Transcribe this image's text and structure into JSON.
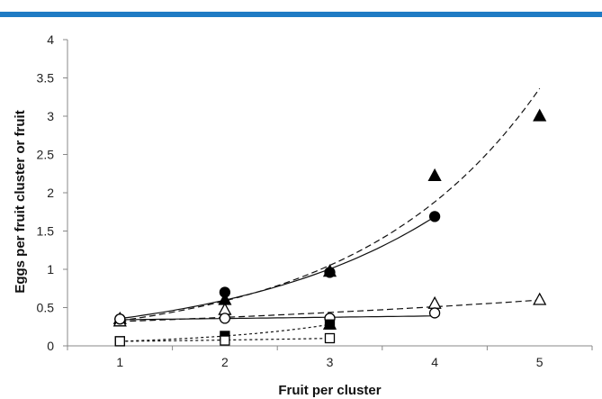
{
  "header_bar_color": "#1f7bc4",
  "chart_data": {
    "type": "scatter",
    "xlabel": "Fruit per cluster",
    "ylabel": "Eggs per fruit cluster or fruit",
    "xlim": [
      0.5,
      5.5
    ],
    "ylim": [
      0,
      4
    ],
    "xticks": [
      1,
      2,
      3,
      4,
      5
    ],
    "yticks": [
      0,
      0.5,
      1,
      1.5,
      2,
      2.5,
      3,
      3.5,
      4
    ],
    "grid": false,
    "legend": "none",
    "series": [
      {
        "marker": "triangle",
        "fill": "filled",
        "line": "long-dash",
        "points": [
          [
            1,
            0.35
          ],
          [
            2,
            0.6
          ],
          [
            3,
            0.97
          ],
          [
            4,
            2.22
          ],
          [
            5,
            3.0
          ]
        ],
        "fit": {
          "form": "exponential",
          "a": 0.1838,
          "b": 0.5813,
          "from": 1,
          "to": 5
        }
      },
      {
        "marker": "circle",
        "fill": "filled",
        "line": "solid",
        "points": [
          [
            1,
            0.35
          ],
          [
            2,
            0.7
          ],
          [
            3,
            0.96
          ],
          [
            4,
            1.69
          ]
        ],
        "fit": {
          "form": "exponential",
          "a": 0.212,
          "b": 0.5186,
          "from": 1,
          "to": 4
        }
      },
      {
        "marker": "triangle",
        "fill": "open",
        "line": "long-dash",
        "points": [
          [
            1,
            0.32
          ],
          [
            2,
            0.47
          ],
          [
            3,
            0.28
          ],
          [
            4,
            0.55
          ],
          [
            5,
            0.6
          ]
        ],
        "fit": {
          "form": "exponential",
          "a": 0.272,
          "b": 0.1576,
          "from": 1,
          "to": 5
        }
      },
      {
        "marker": "circle",
        "fill": "open",
        "line": "solid",
        "points": [
          [
            1,
            0.35
          ],
          [
            2,
            0.36
          ],
          [
            3,
            0.36
          ],
          [
            4,
            0.43
          ]
        ],
        "fit": {
          "form": "exponential",
          "a": 0.3265,
          "b": 0.0451,
          "from": 1,
          "to": 4
        }
      },
      {
        "marker": "square",
        "fill": "filled",
        "line": "short-dash",
        "points": [
          [
            1,
            0.06
          ],
          [
            2,
            0.13
          ],
          [
            3,
            0.28
          ]
        ],
        "fit": {
          "form": "exponential",
          "a": 0.0277,
          "b": 0.7702,
          "from": 1,
          "to": 3
        }
      },
      {
        "marker": "square",
        "fill": "open",
        "line": "short-dash",
        "points": [
          [
            1,
            0.06
          ],
          [
            2,
            0.07
          ],
          [
            3,
            0.1
          ]
        ],
        "fit": {
          "form": "exponential",
          "a": 0.0456,
          "b": 0.2554,
          "from": 1,
          "to": 3
        }
      }
    ]
  }
}
